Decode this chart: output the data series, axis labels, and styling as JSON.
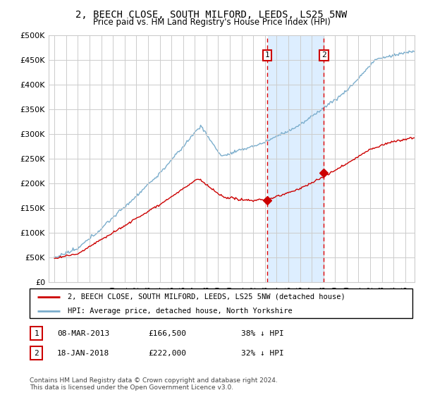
{
  "title": "2, BEECH CLOSE, SOUTH MILFORD, LEEDS, LS25 5NW",
  "subtitle": "Price paid vs. HM Land Registry's House Price Index (HPI)",
  "ylim": [
    0,
    500000
  ],
  "yticks": [
    0,
    50000,
    100000,
    150000,
    200000,
    250000,
    300000,
    350000,
    400000,
    450000,
    500000
  ],
  "ytick_labels": [
    "£0",
    "£50K",
    "£100K",
    "£150K",
    "£200K",
    "£250K",
    "£300K",
    "£350K",
    "£400K",
    "£450K",
    "£500K"
  ],
  "sale1_date": 2013.18,
  "sale1_price": 166500,
  "sale2_date": 2018.05,
  "sale2_price": 222000,
  "sale1_label": "1",
  "sale2_label": "2",
  "legend_property": "2, BEECH CLOSE, SOUTH MILFORD, LEEDS, LS25 5NW (detached house)",
  "legend_hpi": "HPI: Average price, detached house, North Yorkshire",
  "footnote": "Contains HM Land Registry data © Crown copyright and database right 2024.\nThis data is licensed under the Open Government Licence v3.0.",
  "property_color": "#cc0000",
  "hpi_color": "#7aadcc",
  "shade_color": "#ddeeff",
  "vline_color": "#dd0000",
  "marker_color": "#cc0000",
  "background_color": "#ffffff",
  "grid_color": "#cccccc",
  "box_edge_color": "#cc0000"
}
